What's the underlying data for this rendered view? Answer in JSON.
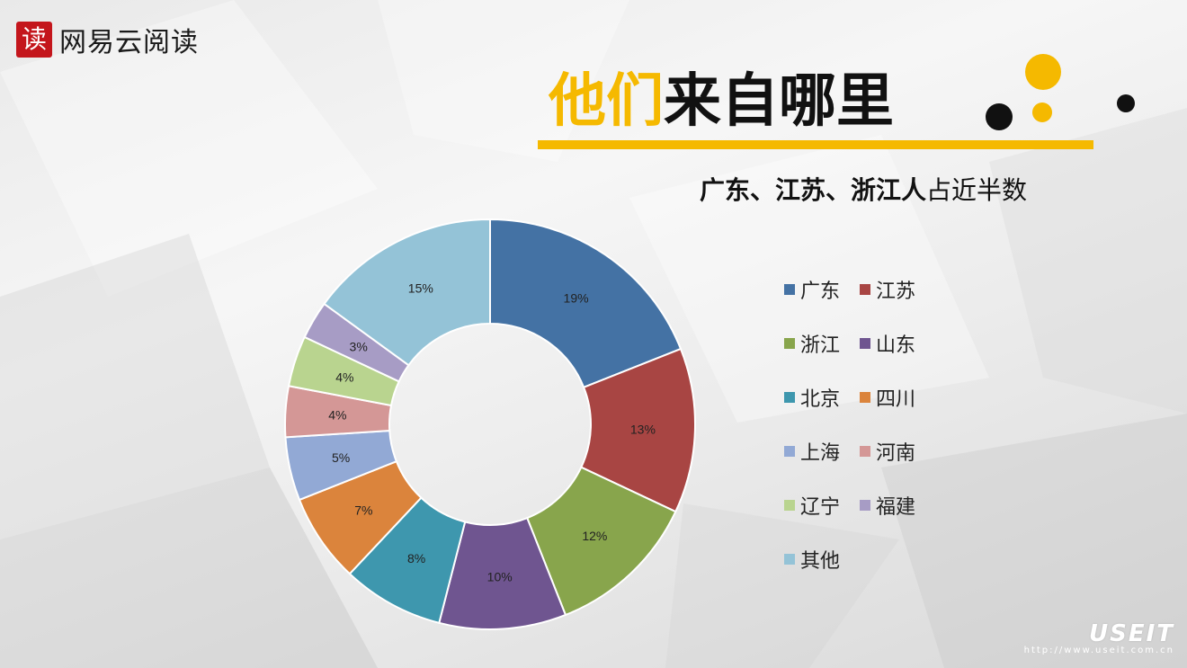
{
  "brand": {
    "logo_glyph": "读",
    "name": "网易云阅读"
  },
  "title": {
    "part1": "他们",
    "part2": "来自哪里"
  },
  "subtitle": {
    "bold": "广东、江苏、浙江人",
    "normal": "占近半数"
  },
  "colors": {
    "accent": "#f5b900",
    "dark": "#111111"
  },
  "chart_data": {
    "type": "pie",
    "variant": "donut",
    "title": "",
    "legend_position": "right",
    "categories": [
      "广东",
      "江苏",
      "浙江",
      "山东",
      "北京",
      "四川",
      "上海",
      "河南",
      "辽宁",
      "福建",
      "其他"
    ],
    "values": [
      19,
      13,
      12,
      10,
      8,
      7,
      5,
      4,
      4,
      3,
      15
    ],
    "labels": [
      "19%",
      "13%",
      "12%",
      "10%",
      "8%",
      "7%",
      "5%",
      "4%",
      "4%",
      "3%",
      "15%"
    ],
    "colors": [
      "#4472a4",
      "#a84543",
      "#88a54c",
      "#6f5590",
      "#3e97ae",
      "#db843c",
      "#92a9d5",
      "#d49796",
      "#b9d48f",
      "#a79cc5",
      "#94c3d7"
    ]
  },
  "watermark": {
    "big": "USEIT",
    "small": "http://www.useit.com.cn"
  }
}
